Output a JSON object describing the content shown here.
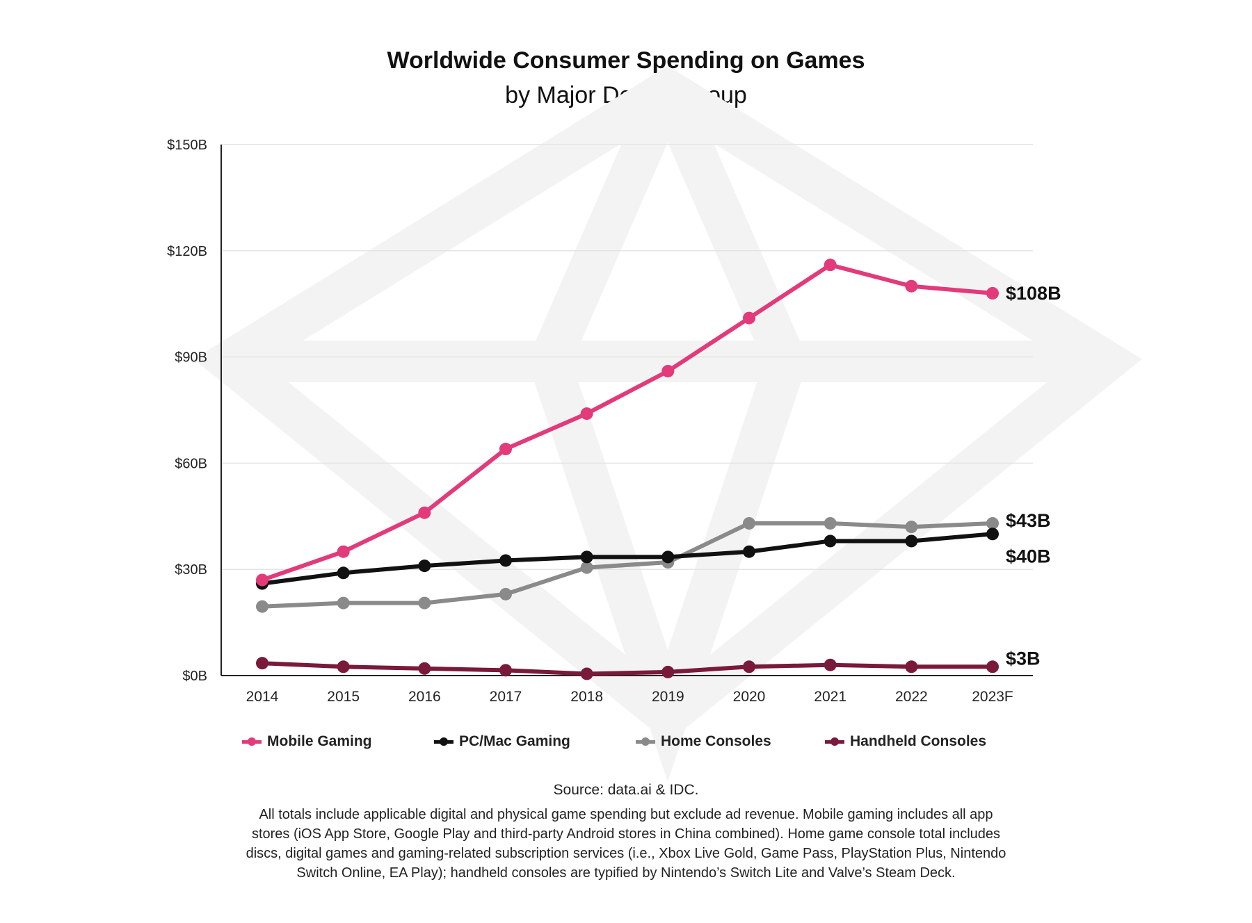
{
  "title_line1": "Worldwide Consumer Spending on Games",
  "title_line2": "by Major Device Group",
  "colors": {
    "mobile": "#e23a7a",
    "pc": "#111111",
    "home": "#8a8a8a",
    "handheld": "#7a1a3a",
    "grid": "#e4e4e4",
    "axis": "#222222"
  },
  "chart_data": {
    "type": "line",
    "title": "Worldwide Consumer Spending on Games by Major Device Group",
    "xlabel": "",
    "ylabel": "",
    "categories": [
      "2014",
      "2015",
      "2016",
      "2017",
      "2018",
      "2019",
      "2020",
      "2021",
      "2022",
      "2023F"
    ],
    "ylim": [
      0,
      150
    ],
    "yticks": [
      0,
      30,
      60,
      90,
      120,
      150
    ],
    "ytick_labels": [
      "$0B",
      "$30B",
      "$60B",
      "$90B",
      "$120B",
      "$150B"
    ],
    "grid": true,
    "legend_position": "bottom",
    "series": [
      {
        "key": "mobile",
        "name": "Mobile Gaming",
        "values": [
          27,
          35,
          46,
          64,
          74,
          86,
          101,
          116,
          110,
          108
        ],
        "end_label": "$108B"
      },
      {
        "key": "pc",
        "name": "PC/Mac Gaming",
        "values": [
          26,
          29,
          31,
          32.5,
          33.5,
          33.5,
          35,
          38,
          38,
          40
        ],
        "end_label": "$40B"
      },
      {
        "key": "home",
        "name": "Home Consoles",
        "values": [
          19.5,
          20.5,
          20.5,
          23,
          30.5,
          32,
          43,
          43,
          42,
          43
        ],
        "end_label": "$43B"
      },
      {
        "key": "handheld",
        "name": "Handheld Consoles",
        "values": [
          3.5,
          2.5,
          2,
          1.5,
          0.5,
          1,
          2.5,
          3,
          2.5,
          2.5
        ],
        "end_label": "$3B"
      }
    ]
  },
  "legend": [
    {
      "key": "mobile",
      "label": "Mobile Gaming"
    },
    {
      "key": "pc",
      "label": "PC/Mac Gaming"
    },
    {
      "key": "home",
      "label": "Home Consoles"
    },
    {
      "key": "handheld",
      "label": "Handheld Consoles"
    }
  ],
  "source": "Source: data.ai & IDC.",
  "note": "All totals include applicable digital and physical game spending but exclude ad revenue. Mobile gaming includes all app stores (iOS App Store, Google Play and third-party Android stores in China combined). Home game console total includes discs, digital games and gaming-related subscription services (i.e., Xbox Live Gold, Game Pass, PlayStation Plus, Nintendo Switch Online, EA Play); handheld consoles are typified by Nintendo’s Switch Lite and Valve’s Steam Deck."
}
